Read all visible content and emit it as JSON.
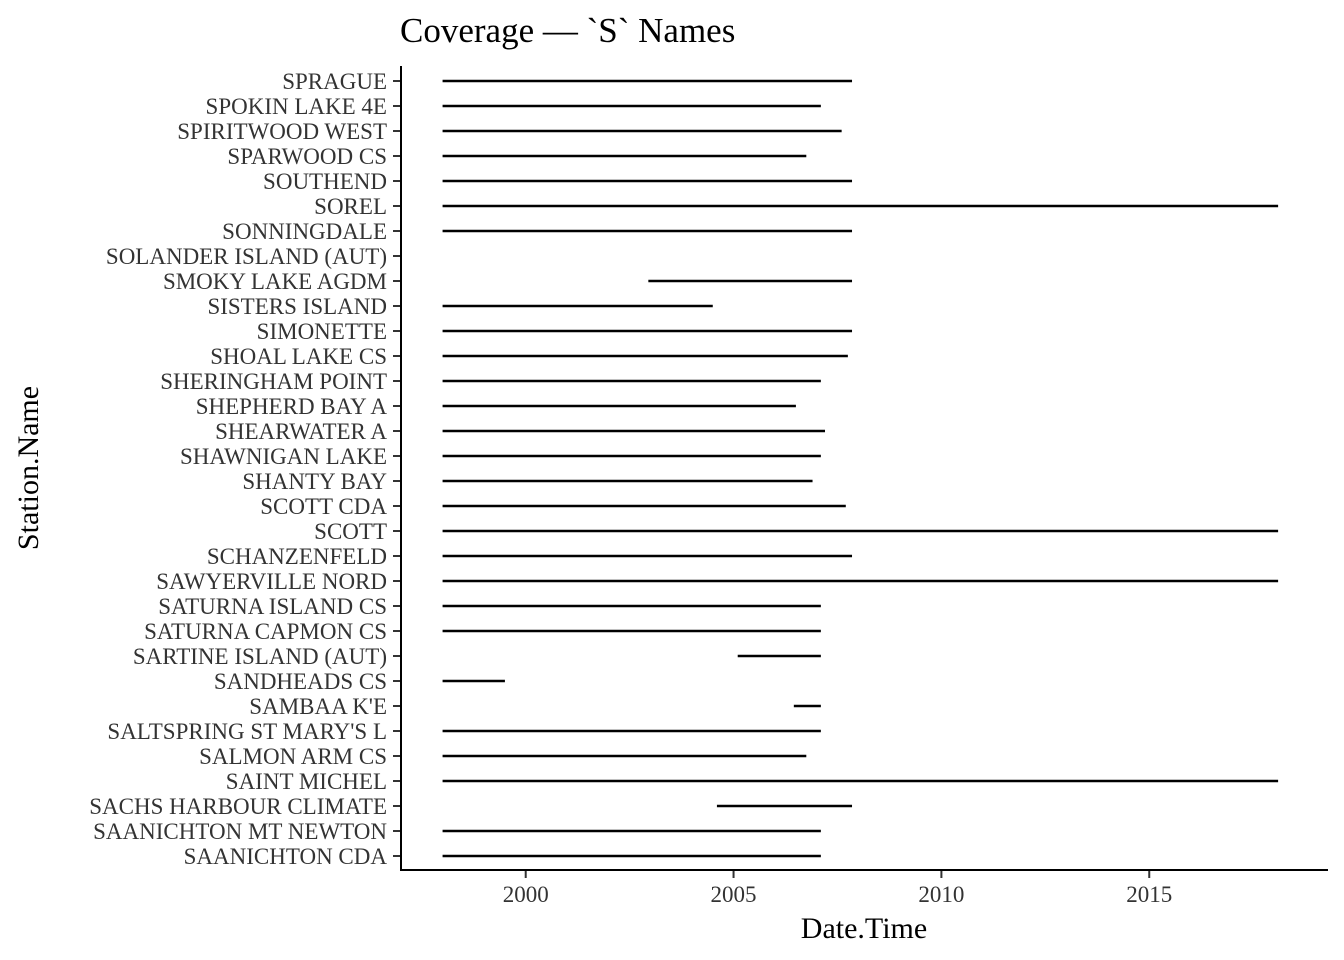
{
  "chart_data": {
    "type": "range",
    "title": "Coverage — `S` Names",
    "xlabel": "Date.Time",
    "ylabel": "Station.Name",
    "xlim": [
      1997.0,
      2019.3
    ],
    "x_ticks": [
      2000,
      2005,
      2010,
      2015
    ],
    "x_tick_labels": [
      "2000",
      "2005",
      "2010",
      "2015"
    ],
    "grid": false,
    "legend": "none",
    "line_color": "#000000",
    "stations": [
      {
        "name": "SPRAGUE",
        "start": 1998.0,
        "end": 2007.85
      },
      {
        "name": "SPOKIN LAKE 4E",
        "start": 1998.0,
        "end": 2007.1
      },
      {
        "name": "SPIRITWOOD WEST",
        "start": 1998.0,
        "end": 2007.6
      },
      {
        "name": "SPARWOOD CS",
        "start": 1998.0,
        "end": 2006.75
      },
      {
        "name": "SOUTHEND",
        "start": 1998.0,
        "end": 2007.85
      },
      {
        "name": "SOREL",
        "start": 1998.0,
        "end": 2018.1
      },
      {
        "name": "SONNINGDALE",
        "start": 1998.0,
        "end": 2007.85
      },
      {
        "name": "SOLANDER ISLAND (AUT)",
        "start": null,
        "end": null
      },
      {
        "name": "SMOKY LAKE AGDM",
        "start": 2002.95,
        "end": 2007.85
      },
      {
        "name": "SISTERS ISLAND",
        "start": 1998.0,
        "end": 2004.5
      },
      {
        "name": "SIMONETTE",
        "start": 1998.0,
        "end": 2007.85
      },
      {
        "name": "SHOAL LAKE CS",
        "start": 1998.0,
        "end": 2007.75
      },
      {
        "name": "SHERINGHAM POINT",
        "start": 1998.0,
        "end": 2007.1
      },
      {
        "name": "SHEPHERD BAY A",
        "start": 1998.0,
        "end": 2006.5
      },
      {
        "name": "SHEARWATER A",
        "start": 1998.0,
        "end": 2007.2
      },
      {
        "name": "SHAWNIGAN LAKE",
        "start": 1998.0,
        "end": 2007.1
      },
      {
        "name": "SHANTY BAY",
        "start": 1998.0,
        "end": 2006.9
      },
      {
        "name": "SCOTT CDA",
        "start": 1998.0,
        "end": 2007.7
      },
      {
        "name": "SCOTT",
        "start": 1998.0,
        "end": 2018.1
      },
      {
        "name": "SCHANZENFELD",
        "start": 1998.0,
        "end": 2007.85
      },
      {
        "name": "SAWYERVILLE NORD",
        "start": 1998.0,
        "end": 2018.1
      },
      {
        "name": "SATURNA ISLAND CS",
        "start": 1998.0,
        "end": 2007.1
      },
      {
        "name": "SATURNA CAPMON CS",
        "start": 1998.0,
        "end": 2007.1
      },
      {
        "name": "SARTINE ISLAND (AUT)",
        "start": 2005.1,
        "end": 2007.1
      },
      {
        "name": "SANDHEADS CS",
        "start": 1998.0,
        "end": 1999.5
      },
      {
        "name": "SAMBAA K'E",
        "start": 2006.45,
        "end": 2007.1
      },
      {
        "name": "SALTSPRING ST MARY'S L",
        "start": 1998.0,
        "end": 2007.1
      },
      {
        "name": "SALMON ARM CS",
        "start": 1998.0,
        "end": 2006.75
      },
      {
        "name": "SAINT MICHEL",
        "start": 1998.0,
        "end": 2018.1
      },
      {
        "name": "SACHS HARBOUR CLIMATE",
        "start": 2004.6,
        "end": 2007.85
      },
      {
        "name": "SAANICHTON MT NEWTON",
        "start": 1998.0,
        "end": 2007.1
      },
      {
        "name": "SAANICHTON CDA",
        "start": 1998.0,
        "end": 2007.1
      }
    ]
  }
}
